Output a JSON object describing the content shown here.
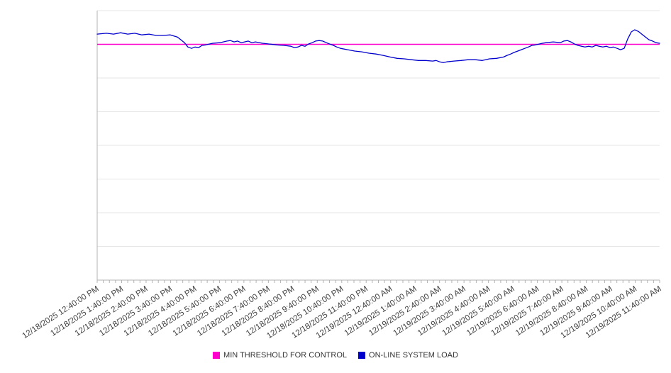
{
  "chart_data": {
    "type": "line",
    "title": "",
    "xlabel": "",
    "ylabel": "",
    "grid": "horizontal",
    "legend_position": "bottom-center",
    "x_range_hours": [
      0,
      23
    ],
    "ylim": [
      0,
      100
    ],
    "y_gridline_values": [
      0,
      12.5,
      25,
      37.5,
      50,
      62.5,
      75,
      87.5,
      100
    ],
    "y_tick_labels_visible": false,
    "minor_tick_interval_hours": 0.25,
    "x_tick_labels": [
      "12/18/2025 12:40:00 PM",
      "12/18/2025 1:40:00 PM",
      "12/18/2025 2:40:00 PM",
      "12/18/2025 3:40:00 PM",
      "12/18/2025 4:40:00 PM",
      "12/18/2025 5:40:00 PM",
      "12/18/2025 6:40:00 PM",
      "12/18/2025 7:40:00 PM",
      "12/18/2025 8:40:00 PM",
      "12/18/2025 9:40:00 PM",
      "12/18/2025 10:40:00 PM",
      "12/18/2025 11:40:00 PM",
      "12/19/2025 12:40:00 AM",
      "12/19/2025 1:40:00 AM",
      "12/19/2025 2:40:00 AM",
      "12/19/2025 3:40:00 AM",
      "12/19/2025 4:40:00 AM",
      "12/19/2025 5:40:00 AM",
      "12/19/2025 6:40:00 AM",
      "12/19/2025 7:40:00 AM",
      "12/19/2025 8:40:00 AM",
      "12/19/2025 9:40:00 AM",
      "12/19/2025 10:40:00 AM",
      "12/19/2025 11:40:00 AM"
    ],
    "series": [
      {
        "name": "MIN THRESHOLD FOR CONTROL",
        "color": "#ff00cc",
        "style": "constant-line",
        "value": 87.5
      },
      {
        "name": "ON-LINE SYSTEM LOAD",
        "color": "#0000cc",
        "style": "line",
        "points": [
          [
            0,
            91.3
          ],
          [
            0.38,
            91.6
          ],
          [
            0.67,
            91.3
          ],
          [
            0.96,
            91.8
          ],
          [
            1.25,
            91.3
          ],
          [
            1.54,
            91.6
          ],
          [
            1.83,
            91.0
          ],
          [
            2.12,
            91.3
          ],
          [
            2.41,
            90.8
          ],
          [
            2.7,
            90.8
          ],
          [
            2.99,
            91.0
          ],
          [
            3.28,
            90.2
          ],
          [
            3.42,
            89.2
          ],
          [
            3.57,
            88.1
          ],
          [
            3.71,
            86.5
          ],
          [
            3.86,
            86.0
          ],
          [
            4.0,
            86.5
          ],
          [
            4.15,
            86.3
          ],
          [
            4.29,
            87.1
          ],
          [
            4.44,
            87.3
          ],
          [
            4.58,
            87.6
          ],
          [
            4.73,
            87.9
          ],
          [
            5.02,
            88.1
          ],
          [
            5.31,
            88.7
          ],
          [
            5.45,
            88.9
          ],
          [
            5.6,
            88.4
          ],
          [
            5.74,
            88.7
          ],
          [
            5.89,
            88.1
          ],
          [
            6.03,
            88.4
          ],
          [
            6.18,
            88.7
          ],
          [
            6.32,
            88.1
          ],
          [
            6.47,
            88.4
          ],
          [
            6.76,
            87.9
          ],
          [
            7.05,
            87.6
          ],
          [
            7.34,
            87.3
          ],
          [
            7.63,
            87.1
          ],
          [
            7.92,
            86.8
          ],
          [
            8.06,
            86.3
          ],
          [
            8.21,
            86.5
          ],
          [
            8.35,
            87.1
          ],
          [
            8.5,
            86.8
          ],
          [
            8.64,
            87.6
          ],
          [
            8.79,
            88.1
          ],
          [
            8.93,
            88.7
          ],
          [
            9.08,
            88.9
          ],
          [
            9.22,
            88.7
          ],
          [
            9.37,
            88.1
          ],
          [
            9.51,
            87.6
          ],
          [
            9.66,
            87.1
          ],
          [
            9.8,
            86.5
          ],
          [
            9.95,
            86.0
          ],
          [
            10.24,
            85.5
          ],
          [
            10.53,
            85.0
          ],
          [
            10.82,
            84.7
          ],
          [
            11.11,
            84.2
          ],
          [
            11.4,
            83.9
          ],
          [
            11.69,
            83.4
          ],
          [
            11.98,
            82.8
          ],
          [
            12.27,
            82.3
          ],
          [
            12.56,
            82.1
          ],
          [
            12.85,
            81.8
          ],
          [
            13.14,
            81.5
          ],
          [
            13.43,
            81.5
          ],
          [
            13.72,
            81.3
          ],
          [
            13.86,
            81.5
          ],
          [
            14.01,
            81.0
          ],
          [
            14.15,
            80.7
          ],
          [
            14.3,
            81.0
          ],
          [
            14.59,
            81.3
          ],
          [
            14.88,
            81.5
          ],
          [
            15.17,
            81.8
          ],
          [
            15.46,
            81.8
          ],
          [
            15.75,
            81.5
          ],
          [
            16.04,
            82.1
          ],
          [
            16.33,
            82.3
          ],
          [
            16.62,
            82.8
          ],
          [
            16.76,
            83.4
          ],
          [
            16.91,
            83.9
          ],
          [
            17.05,
            84.5
          ],
          [
            17.2,
            85.0
          ],
          [
            17.34,
            85.5
          ],
          [
            17.49,
            86.0
          ],
          [
            17.63,
            86.5
          ],
          [
            17.78,
            87.1
          ],
          [
            17.92,
            87.3
          ],
          [
            18.07,
            87.6
          ],
          [
            18.21,
            87.9
          ],
          [
            18.36,
            88.1
          ],
          [
            18.65,
            88.4
          ],
          [
            18.94,
            88.1
          ],
          [
            19.08,
            88.7
          ],
          [
            19.23,
            88.9
          ],
          [
            19.37,
            88.4
          ],
          [
            19.52,
            87.6
          ],
          [
            19.66,
            87.1
          ],
          [
            19.81,
            86.8
          ],
          [
            19.95,
            86.5
          ],
          [
            20.1,
            86.8
          ],
          [
            20.24,
            86.5
          ],
          [
            20.39,
            87.1
          ],
          [
            20.53,
            86.8
          ],
          [
            20.68,
            86.5
          ],
          [
            20.82,
            86.8
          ],
          [
            20.97,
            86.3
          ],
          [
            21.11,
            86.5
          ],
          [
            21.26,
            86.0
          ],
          [
            21.4,
            85.5
          ],
          [
            21.55,
            86.0
          ],
          [
            21.69,
            89.4
          ],
          [
            21.84,
            92.1
          ],
          [
            21.98,
            92.9
          ],
          [
            22.13,
            92.3
          ],
          [
            22.27,
            91.3
          ],
          [
            22.42,
            90.2
          ],
          [
            22.56,
            89.2
          ],
          [
            22.71,
            88.7
          ],
          [
            22.85,
            88.1
          ],
          [
            23,
            87.9
          ]
        ]
      }
    ]
  },
  "colors": {
    "background": "#ffffff",
    "gridline": "#e6e6e6",
    "axis": "#b3b3b3",
    "tick_label": "#404040",
    "legend_text": "#333333"
  }
}
